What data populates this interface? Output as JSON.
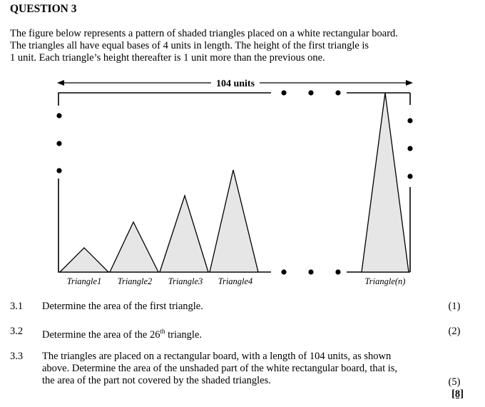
{
  "question": {
    "heading": "QUESTION 3",
    "intro_lines": [
      "The figure below represents a pattern of shaded triangles placed on a white rectangular board.",
      "The triangles all have equal bases of 4 units in length. The height of the first triangle is",
      "1 unit. Each triangle’s height thereafter is 1 unit more than the previous one."
    ]
  },
  "figure": {
    "length_label": "104 units",
    "triangle_labels": [
      "Triangle1",
      "Triangle2",
      "Triangle3",
      "Triangle4",
      "Triangle(n)"
    ],
    "colors": {
      "fill": "#e6e6e6",
      "stroke": "#000000"
    }
  },
  "subquestions": [
    {
      "number": "3.1",
      "lines": [
        "Determine the area of the first triangle."
      ],
      "marks": "(1)"
    },
    {
      "number": "3.2",
      "text_before": "Determine the area of the 26",
      "superscript": "th",
      "text_after": " triangle.",
      "marks": "(2)"
    },
    {
      "number": "3.3",
      "lines": [
        "The triangles are placed on a rectangular board, with a length of 104 units, as shown",
        "above. Determine the area of the unshaded part of the white rectangular board, that is,",
        "the area of the part not covered by the shaded triangles."
      ],
      "marks": "(5)"
    }
  ],
  "total": "[8]"
}
